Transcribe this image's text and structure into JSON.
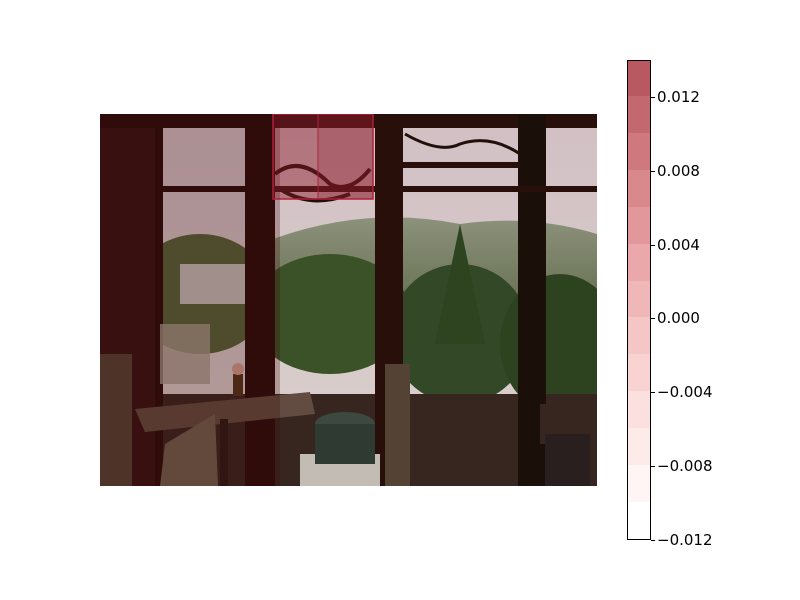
{
  "photo": {
    "subject": "cafe interior with windows overlooking a garden",
    "palette": {
      "wall": "#3a1414",
      "frame": "#2a0f0a",
      "sky": "#e8dce0",
      "hills": "#7a8a70",
      "foliage": "#3e5a2c",
      "water": "#d8d4c4",
      "table": "#4a3428",
      "chair": "#c8c0b0"
    }
  },
  "overlay": {
    "color": "#8b1a2a",
    "highlight_cells": [
      {
        "label": "window-top-center",
        "level": 0.014
      }
    ]
  },
  "colorbar": {
    "min": -0.012,
    "max": 0.014,
    "step": 0.002,
    "colors": [
      "#ffffff",
      "#fff5f4",
      "#fdebea",
      "#fbe0df",
      "#f8d3d2",
      "#f5c6c6",
      "#f0b7b8",
      "#eaa8aa",
      "#e2989b",
      "#d9888c",
      "#cf787d",
      "#c4686f",
      "#b85962"
    ],
    "ticks": [
      {
        "value": 0.012,
        "label": "0.012"
      },
      {
        "value": 0.008,
        "label": "0.008"
      },
      {
        "value": 0.004,
        "label": "0.004"
      },
      {
        "value": 0.0,
        "label": "0.000"
      },
      {
        "value": -0.004,
        "label": "−0.004"
      },
      {
        "value": -0.008,
        "label": "−0.008"
      },
      {
        "value": -0.012,
        "label": "−0.012"
      }
    ]
  }
}
